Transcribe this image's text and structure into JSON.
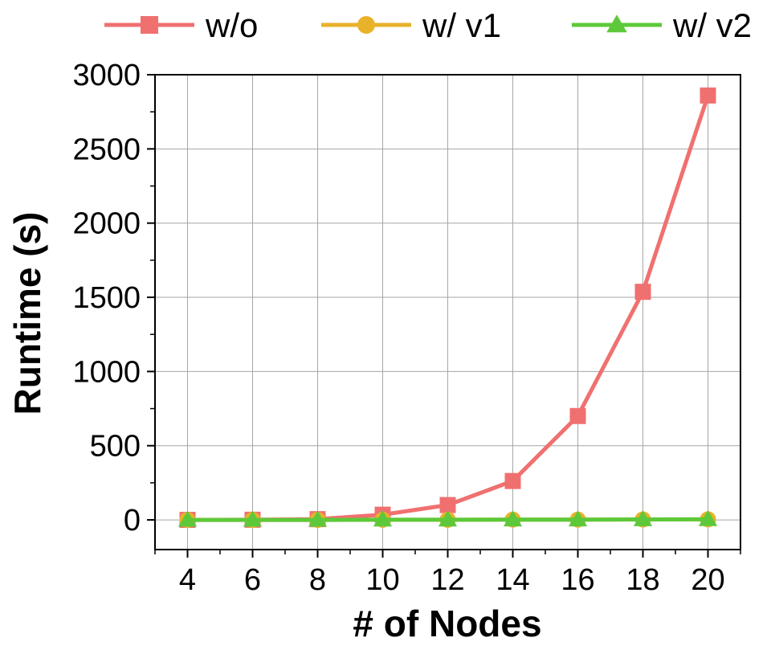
{
  "chart_data": {
    "type": "line",
    "x": [
      4,
      6,
      8,
      10,
      12,
      14,
      16,
      18,
      20
    ],
    "x_tick_labels": [
      "4",
      "6",
      "8",
      "10",
      "12",
      "14",
      "16",
      "18",
      "20"
    ],
    "xlim": [
      3,
      21
    ],
    "ylim": [
      -200,
      3000
    ],
    "y_ticks": [
      0,
      500,
      1000,
      1500,
      2000,
      2500,
      3000
    ],
    "y_tick_labels": [
      "0",
      "500",
      "1000",
      "1500",
      "2000",
      "2500",
      "3000"
    ],
    "xlabel": "# of Nodes",
    "ylabel": "Runtime (s)",
    "grid": true,
    "legend_position": "top",
    "series": [
      {
        "name": "w/o",
        "color": "#f07070",
        "marker": "square",
        "values": [
          0,
          1,
          5,
          35,
          100,
          262,
          700,
          1537,
          2860
        ]
      },
      {
        "name": "w/ v1",
        "color": "#e8b22a",
        "marker": "circle",
        "values": [
          0,
          0,
          0,
          1,
          1,
          2,
          2,
          3,
          4
        ]
      },
      {
        "name": "w/ v2",
        "color": "#5dc93a",
        "marker": "triangle",
        "values": [
          0,
          0,
          0,
          1,
          1,
          2,
          2,
          3,
          4
        ]
      }
    ]
  }
}
